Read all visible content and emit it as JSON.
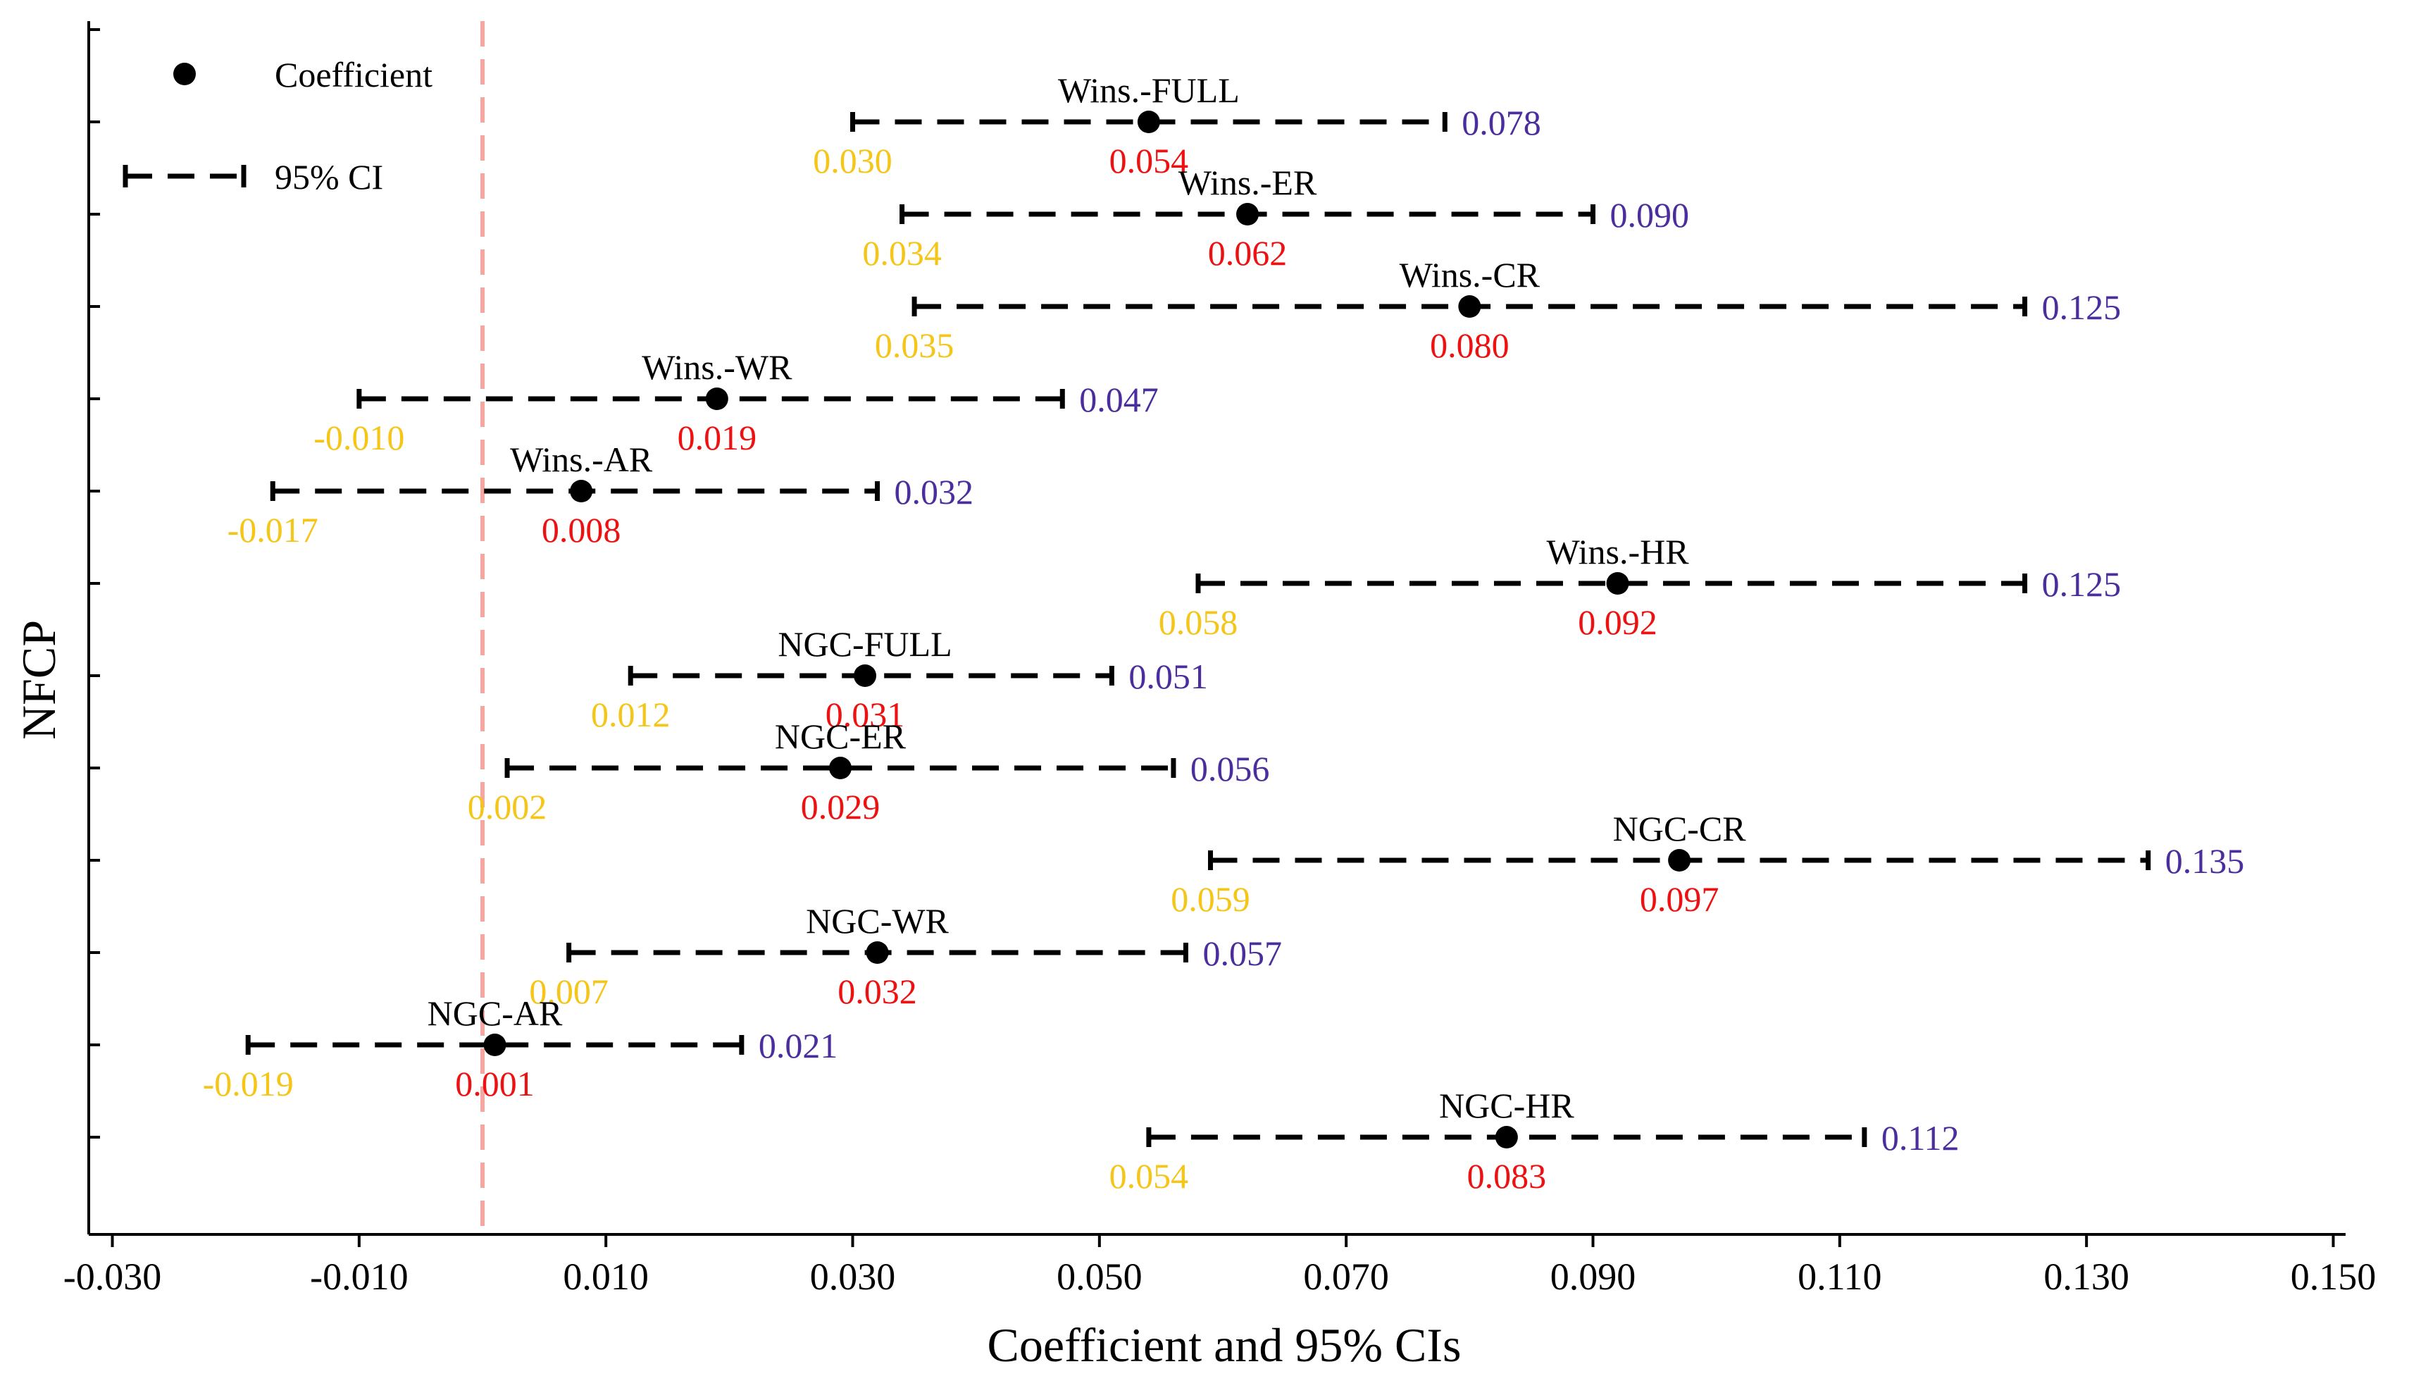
{
  "chart_data": {
    "type": "forest",
    "xlabel": "Coefficient and 95% CIs",
    "ylabel": "NFCP",
    "xlim": [
      -0.031,
      0.151
    ],
    "xticks": [
      "-0.030",
      "-0.010",
      "0.010",
      "0.030",
      "0.050",
      "0.070",
      "0.090",
      "0.110",
      "0.130",
      "0.150"
    ],
    "reference_line": 0.0,
    "legend": {
      "coefficient_label": "Coefficient",
      "ci_label": "95% CI",
      "placement": "top-left"
    },
    "colors": {
      "lower": "#f5c518",
      "upper": "#4b2e9e",
      "coef": "#ee1111",
      "reference": "#f4a6a0"
    },
    "rows": [
      {
        "label": "Wins.-FULL",
        "coef": 0.054,
        "lower": 0.03,
        "upper": 0.078,
        "coef_text": "0.054",
        "lower_text": "0.030",
        "upper_text": "0.078"
      },
      {
        "label": "Wins.-ER",
        "coef": 0.062,
        "lower": 0.034,
        "upper": 0.09,
        "coef_text": "0.062",
        "lower_text": "0.034",
        "upper_text": "0.090"
      },
      {
        "label": "Wins.-CR",
        "coef": 0.08,
        "lower": 0.035,
        "upper": 0.125,
        "coef_text": "0.080",
        "lower_text": "0.035",
        "upper_text": "0.125"
      },
      {
        "label": "Wins.-WR",
        "coef": 0.019,
        "lower": -0.01,
        "upper": 0.047,
        "coef_text": "0.019",
        "lower_text": "-0.010",
        "upper_text": "0.047"
      },
      {
        "label": "Wins.-AR",
        "coef": 0.008,
        "lower": -0.017,
        "upper": 0.032,
        "coef_text": "0.008",
        "lower_text": "-0.017",
        "upper_text": "0.032"
      },
      {
        "label": "Wins.-HR",
        "coef": 0.092,
        "lower": 0.058,
        "upper": 0.125,
        "coef_text": "0.092",
        "lower_text": "0.058",
        "upper_text": "0.125"
      },
      {
        "label": "NGC-FULL",
        "coef": 0.031,
        "lower": 0.012,
        "upper": 0.051,
        "coef_text": "0.031",
        "lower_text": "0.012",
        "upper_text": "0.051"
      },
      {
        "label": "NGC-ER",
        "coef": 0.029,
        "lower": 0.002,
        "upper": 0.056,
        "coef_text": "0.029",
        "lower_text": "0.002",
        "upper_text": "0.056"
      },
      {
        "label": "NGC-CR",
        "coef": 0.097,
        "lower": 0.059,
        "upper": 0.135,
        "coef_text": "0.097",
        "lower_text": "0.059",
        "upper_text": "0.135"
      },
      {
        "label": "NGC-WR",
        "coef": 0.032,
        "lower": 0.007,
        "upper": 0.057,
        "coef_text": "0.032",
        "lower_text": "0.007",
        "upper_text": "0.057"
      },
      {
        "label": "NGC-AR",
        "coef": 0.001,
        "lower": -0.019,
        "upper": 0.021,
        "coef_text": "0.001",
        "lower_text": "-0.019",
        "upper_text": "0.021"
      },
      {
        "label": "NGC-HR",
        "coef": 0.083,
        "lower": 0.054,
        "upper": 0.112,
        "coef_text": "0.083",
        "lower_text": "0.054",
        "upper_text": "0.112"
      }
    ]
  }
}
